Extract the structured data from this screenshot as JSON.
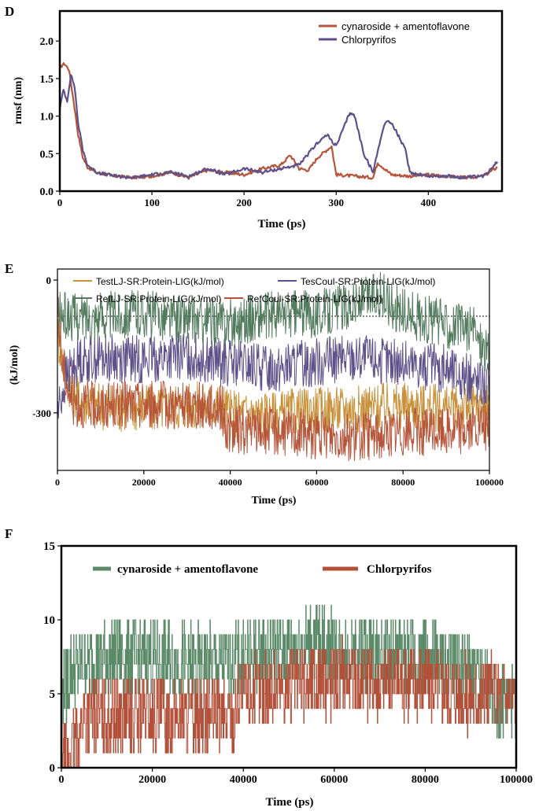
{
  "colors": {
    "orange_red": "#B5553A",
    "purple": "#5E5088",
    "gold": "#C8913A",
    "green": "#537B5E",
    "hb_green": "#5B8A68",
    "hb_red": "#B3503A",
    "axis": "#000000"
  },
  "chart_data": [
    {
      "type": "line",
      "panel_label": "D",
      "title": "",
      "xlabel": "Time (ps)",
      "ylabel": "rmsf (nm)",
      "xlim": [
        0,
        480
      ],
      "ylim": [
        0,
        2.4
      ],
      "xticks": [
        "0",
        "100",
        "200",
        "300",
        "400"
      ],
      "yticks": [
        "0.0",
        "0.5",
        "1.0",
        "1.5",
        "2.0"
      ],
      "xtick_values": [
        0,
        100,
        200,
        300,
        400
      ],
      "ytick_values": [
        0,
        0.5,
        1.0,
        1.5,
        2.0
      ],
      "legend": "top-right",
      "series": [
        {
          "name": "cynaroside + amentoflavone",
          "color": "#B5553A",
          "x": [
            0,
            5,
            10,
            15,
            20,
            25,
            30,
            40,
            60,
            80,
            100,
            120,
            140,
            160,
            180,
            200,
            220,
            240,
            250,
            260,
            270,
            280,
            290,
            295,
            300,
            320,
            340,
            345,
            360,
            380,
            400,
            420,
            440,
            460,
            475
          ],
          "y": [
            1.65,
            1.7,
            1.62,
            1.2,
            0.75,
            0.45,
            0.32,
            0.25,
            0.2,
            0.18,
            0.2,
            0.25,
            0.18,
            0.28,
            0.25,
            0.22,
            0.3,
            0.35,
            0.48,
            0.3,
            0.28,
            0.45,
            0.55,
            0.6,
            0.22,
            0.2,
            0.18,
            0.38,
            0.22,
            0.2,
            0.22,
            0.2,
            0.18,
            0.2,
            0.32
          ]
        },
        {
          "name": "Chlorpyrifos",
          "color": "#5E5088",
          "x": [
            0,
            4,
            8,
            12,
            16,
            20,
            25,
            30,
            40,
            60,
            80,
            100,
            120,
            140,
            160,
            180,
            200,
            220,
            240,
            260,
            280,
            290,
            300,
            310,
            315,
            320,
            330,
            340,
            350,
            355,
            360,
            365,
            375,
            380,
            400,
            420,
            440,
            460,
            475
          ],
          "y": [
            1.1,
            1.35,
            1.2,
            1.55,
            1.4,
            0.9,
            0.55,
            0.35,
            0.25,
            0.2,
            0.18,
            0.22,
            0.25,
            0.2,
            0.3,
            0.22,
            0.3,
            0.25,
            0.3,
            0.35,
            0.65,
            0.75,
            0.6,
            0.9,
            1.05,
            1.0,
            0.5,
            0.25,
            0.8,
            0.95,
            0.9,
            0.8,
            0.55,
            0.25,
            0.2,
            0.2,
            0.18,
            0.2,
            0.4
          ]
        }
      ]
    },
    {
      "type": "line",
      "panel_label": "E",
      "title": "",
      "xlabel": "Time (ps)",
      "ylabel": "(kJ/mol)",
      "xlim": [
        0,
        100000
      ],
      "ylim": [
        -430,
        25
      ],
      "xticks": [
        "0",
        "20000",
        "40000",
        "60000",
        "80000",
        "100000"
      ],
      "yticks": [
        "0",
        "-300"
      ],
      "xtick_values": [
        0,
        20000,
        40000,
        60000,
        80000,
        100000
      ],
      "ytick_values": [
        0,
        -300
      ],
      "reference_line": 0,
      "legend": "top",
      "series": [
        {
          "name": "TestLJ-SR:Protein-LIG(kJ/mol)",
          "color": "#C8913A",
          "x": [
            0,
            2000,
            5000,
            10000,
            20000,
            30000,
            38000,
            40000,
            50000,
            60000,
            70000,
            80000,
            90000,
            100000
          ],
          "y": [
            -120,
            -220,
            -270,
            -285,
            -290,
            -285,
            -280,
            -300,
            -305,
            -295,
            -290,
            -285,
            -290,
            -290
          ]
        },
        {
          "name": "TesCoul-SR:Protein-LIG(kJ/mol)",
          "color": "#5E5088",
          "x": [
            0,
            2000,
            5000,
            10000,
            20000,
            30000,
            40000,
            50000,
            60000,
            70000,
            80000,
            90000,
            100000
          ],
          "y": [
            -300,
            -220,
            -180,
            -175,
            -180,
            -170,
            -190,
            -200,
            -185,
            -175,
            -190,
            -200,
            -240
          ]
        },
        {
          "name": "RefLJ-SR:Protein-LIG(kJ/mol)",
          "color": "#537B5E",
          "x": [
            0,
            5000,
            10000,
            20000,
            30000,
            40000,
            50000,
            60000,
            70000,
            74000,
            80000,
            90000,
            96000,
            100000
          ],
          "y": [
            -80,
            -85,
            -80,
            -75,
            -90,
            -95,
            -80,
            -75,
            -50,
            -30,
            -75,
            -100,
            -110,
            -170
          ]
        },
        {
          "name": "RefCoul-SR:Protein-LIG(kJ/mol)",
          "color": "#B5553A",
          "x": [
            0,
            1000,
            3000,
            5000,
            10000,
            20000,
            30000,
            38000,
            39000,
            50000,
            60000,
            70000,
            80000,
            90000,
            100000
          ],
          "y": [
            -40,
            -180,
            -270,
            -280,
            -285,
            -280,
            -285,
            -285,
            -340,
            -340,
            -350,
            -355,
            -345,
            -340,
            -335
          ]
        }
      ]
    },
    {
      "type": "line",
      "panel_label": "F",
      "title": "",
      "xlabel": "Time (ps)",
      "ylabel": "",
      "xlim": [
        0,
        100000
      ],
      "ylim": [
        0,
        15
      ],
      "xticks": [
        "0",
        "20000",
        "40000",
        "60000",
        "80000",
        "100000"
      ],
      "yticks": [
        "0",
        "5",
        "10",
        "15"
      ],
      "xtick_values": [
        0,
        20000,
        40000,
        60000,
        80000,
        100000
      ],
      "ytick_values": [
        0,
        5,
        10,
        15
      ],
      "legend": "top",
      "series": [
        {
          "name": "cynaroside + amentoflavone",
          "color": "#5B8A68",
          "x": [
            0,
            2000,
            5000,
            10000,
            20000,
            30000,
            38000,
            40000,
            50000,
            57000,
            60000,
            70000,
            80000,
            90000,
            95000,
            100000
          ],
          "y": [
            5,
            6.5,
            7,
            7.5,
            7.5,
            7,
            7,
            7.5,
            8,
            8.5,
            8,
            7.5,
            7.5,
            6.5,
            5,
            4
          ]
        },
        {
          "name": "Chlorpyrifos",
          "color": "#B3503A",
          "x": [
            0,
            1000,
            3000,
            5000,
            10000,
            20000,
            30000,
            38000,
            39000,
            50000,
            60000,
            70000,
            80000,
            90000,
            100000
          ],
          "y": [
            0.5,
            0.5,
            1.5,
            3.5,
            3.5,
            3.5,
            3.5,
            3.5,
            5,
            5.5,
            6,
            6,
            6,
            5,
            5
          ]
        }
      ]
    }
  ]
}
